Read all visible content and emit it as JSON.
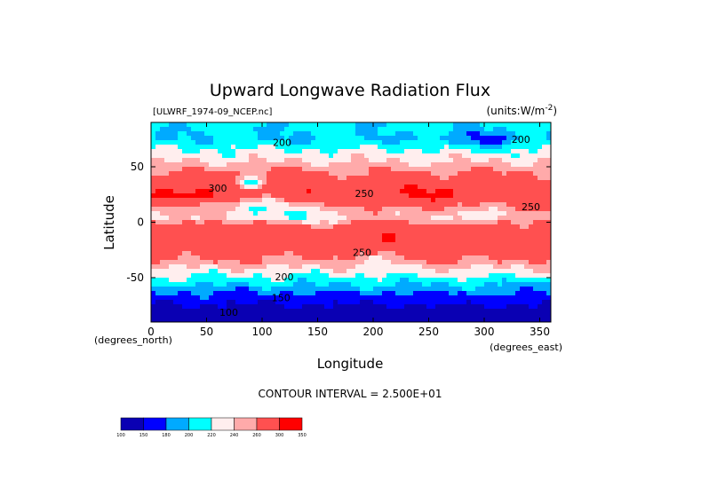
{
  "chart_data": {
    "type": "heatmap",
    "title": "Upward Longwave Radiation Flux",
    "source_label": "[ULWRF_1974-09_NCEP.nc]",
    "units_label": "(units:W/m^-2)",
    "units_prefix": "(units:W/m",
    "units_exp": "-2",
    "units_suffix": ")",
    "xlabel": "Longitude",
    "ylabel": "Latitude",
    "x_unit_label": "(degrees_east)",
    "y_unit_label": "(degrees_north)",
    "xlim": [
      0,
      360
    ],
    "ylim": [
      -90,
      90
    ],
    "x_ticks": [
      0,
      50,
      100,
      150,
      200,
      250,
      300,
      350
    ],
    "y_ticks": [
      -50,
      0,
      50
    ],
    "contour_interval_text": "CONTOUR INTERVAL = 2.500E+01",
    "contour_labels": [
      {
        "text": "200",
        "lon": 118,
        "lat": 72
      },
      {
        "text": "200",
        "lon": 333,
        "lat": 75
      },
      {
        "text": "300",
        "lon": 60,
        "lat": 31
      },
      {
        "text": "250",
        "lon": 192,
        "lat": 26
      },
      {
        "text": "250",
        "lon": 342,
        "lat": 14
      },
      {
        "text": "250",
        "lon": 190,
        "lat": -27
      },
      {
        "text": "200",
        "lon": 120,
        "lat": -49
      },
      {
        "text": "150",
        "lon": 117,
        "lat": -68
      },
      {
        "text": "100",
        "lon": 70,
        "lat": -81
      }
    ],
    "colorbar": {
      "boundaries": [
        "100",
        "150",
        "180",
        "200",
        "220",
        "240",
        "260",
        "300",
        "350"
      ],
      "colors": [
        "#0a00b3",
        "#0000ff",
        "#00aaff",
        "#00ffff",
        "#ffeeee",
        "#ffaaaa",
        "#ff5050",
        "#ff0000"
      ]
    },
    "zonal_profile": {
      "description_free": true,
      "lat": [
        85,
        75,
        65,
        55,
        45,
        35,
        25,
        15,
        5,
        -5,
        -15,
        -25,
        -35,
        -45,
        -55,
        -65,
        -75,
        -85
      ],
      "values": [
        205,
        200,
        222,
        238,
        262,
        280,
        292,
        262,
        250,
        278,
        282,
        276,
        258,
        228,
        205,
        175,
        148,
        125
      ]
    }
  }
}
